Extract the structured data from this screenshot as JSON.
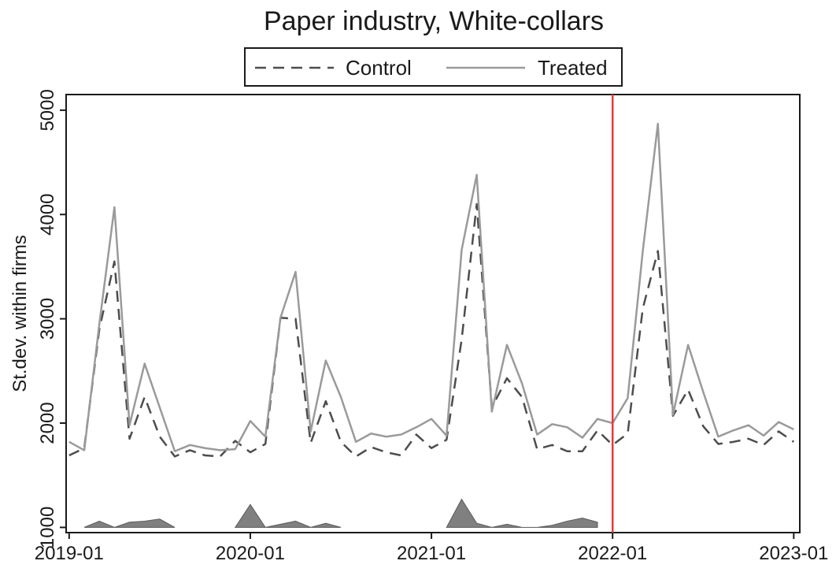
{
  "chart_data": {
    "type": "line",
    "title": "Paper industry, White-collars",
    "ylabel": "St.dev. within firms",
    "xlabel": "",
    "ylim": [
      950,
      5150
    ],
    "yticks": [
      1000,
      2000,
      3000,
      4000,
      5000
    ],
    "xticks": [
      {
        "label": "2019-01",
        "value": 0
      },
      {
        "label": "2020-01",
        "value": 12
      },
      {
        "label": "2021-01",
        "value": 24
      },
      {
        "label": "2022-01",
        "value": 36
      },
      {
        "label": "2023-01",
        "value": 48
      }
    ],
    "xlim": [
      -0.2,
      48.4
    ],
    "grid": false,
    "legend": {
      "position": "top",
      "entries": [
        "Control",
        "Treated"
      ]
    },
    "event_line": {
      "value": 36,
      "color": "#e8383d"
    },
    "series": [
      {
        "name": "Control",
        "style": "dashed",
        "color": "#4d4d4d",
        "x": [
          0,
          1,
          2,
          3,
          4,
          5,
          6,
          7,
          8,
          9,
          10,
          11,
          12,
          13,
          14,
          15,
          16,
          17,
          18,
          19,
          20,
          21,
          22,
          23,
          24,
          25,
          26,
          27,
          28,
          29,
          30,
          31,
          32,
          33,
          34,
          35,
          36,
          37,
          38,
          39,
          40,
          41,
          42,
          43,
          44,
          45,
          46,
          47,
          48
        ],
        "values": [
          1690,
          1760,
          2900,
          3550,
          1850,
          2250,
          1870,
          1680,
          1740,
          1690,
          1680,
          1830,
          1720,
          1800,
          3010,
          3000,
          1810,
          2210,
          1820,
          1680,
          1770,
          1720,
          1690,
          1890,
          1760,
          1840,
          2800,
          4100,
          2150,
          2430,
          2250,
          1750,
          1790,
          1730,
          1730,
          1930,
          1790,
          1900,
          3100,
          3650,
          2070,
          2320,
          1970,
          1800,
          1820,
          1850,
          1790,
          1920,
          1820
        ]
      },
      {
        "name": "Treated",
        "style": "solid",
        "color": "#9a9a9a",
        "x": [
          0,
          1,
          2,
          3,
          4,
          5,
          6,
          7,
          8,
          9,
          10,
          11,
          12,
          13,
          14,
          15,
          16,
          17,
          18,
          19,
          20,
          21,
          22,
          23,
          24,
          25,
          26,
          27,
          28,
          29,
          30,
          31,
          32,
          33,
          34,
          35,
          36,
          37,
          38,
          39,
          40,
          41,
          42,
          43,
          44,
          45,
          46,
          47,
          48
        ],
        "values": [
          1820,
          1740,
          2950,
          4070,
          1980,
          2570,
          2150,
          1730,
          1790,
          1760,
          1740,
          1750,
          2020,
          1870,
          3010,
          3450,
          1920,
          2600,
          2250,
          1820,
          1900,
          1870,
          1890,
          1960,
          2040,
          1880,
          3660,
          4380,
          2110,
          2750,
          2380,
          1890,
          1990,
          1960,
          1860,
          2040,
          2000,
          2240,
          3650,
          4870,
          2080,
          2750,
          2300,
          1870,
          1930,
          1980,
          1880,
          2010,
          1940
        ]
      },
      {
        "name": "",
        "type": "area",
        "color": "#808080",
        "x": [
          1,
          2,
          3,
          4,
          5,
          6,
          7,
          8,
          9,
          11,
          12,
          13,
          14,
          15,
          16,
          17,
          18,
          25,
          26,
          27,
          28,
          29,
          30,
          31,
          32,
          33,
          34,
          35
        ],
        "values": [
          1000,
          1060,
          1000,
          1050,
          1060,
          1080,
          1000,
          null,
          null,
          1000,
          1220,
          1000,
          1030,
          1060,
          1000,
          1040,
          1000,
          1000,
          1270,
          1040,
          1000,
          1030,
          1000,
          1000,
          1020,
          1060,
          1090,
          1050
        ]
      }
    ]
  }
}
